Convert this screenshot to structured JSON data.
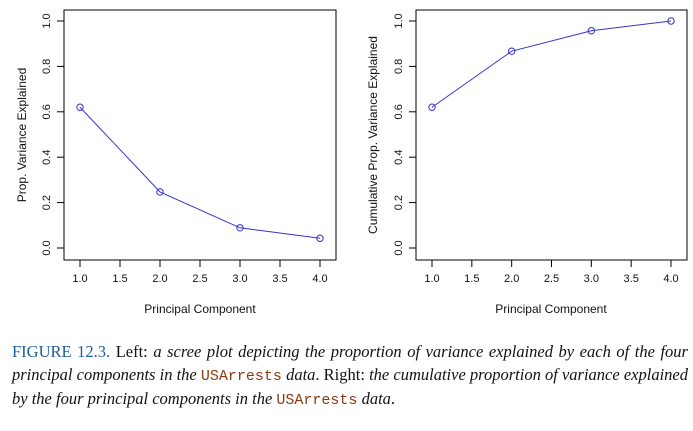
{
  "chart_data": [
    {
      "type": "line",
      "title": "",
      "xlabel": "Principal Component",
      "ylabel": "Prop. Variance Explained",
      "x": [
        1,
        2,
        3,
        4
      ],
      "series": [
        {
          "values": [
            0.62,
            0.247,
            0.089,
            0.043
          ]
        }
      ],
      "xlim": [
        1,
        4
      ],
      "ylim": [
        0,
        1
      ],
      "xticks": [
        "1.0",
        "1.5",
        "2.0",
        "2.5",
        "3.0",
        "3.5",
        "4.0"
      ],
      "yticks": [
        "0.0",
        "0.2",
        "0.4",
        "0.6",
        "0.8",
        "1.0"
      ],
      "grid": false,
      "line_color": "#3333cc"
    },
    {
      "type": "line",
      "title": "",
      "xlabel": "Principal Component",
      "ylabel": "Cumulative Prop. Variance Explained",
      "x": [
        1,
        2,
        3,
        4
      ],
      "series": [
        {
          "values": [
            0.62,
            0.867,
            0.957,
            1.0
          ]
        }
      ],
      "xlim": [
        1,
        4
      ],
      "ylim": [
        0,
        1
      ],
      "xticks": [
        "1.0",
        "1.5",
        "2.0",
        "2.5",
        "3.0",
        "3.5",
        "4.0"
      ],
      "yticks": [
        "0.0",
        "0.2",
        "0.4",
        "0.6",
        "0.8",
        "1.0"
      ],
      "grid": false,
      "line_color": "#3333cc"
    }
  ],
  "caption": {
    "label": "FIGURE 12.3.",
    "p1": " Left: ",
    "p2": "a scree plot depicting the proportion of variance explained by each of the four principal components in the ",
    "code1": "USArrests",
    "p3": " data",
    "p4": ". Right: ",
    "p5": "the cumulative proportion of variance explained by the four principal components in the ",
    "code2": "USArrests",
    "p6": " data",
    "p7": "."
  },
  "colors": {
    "label": "#1f5c99",
    "code": "#8b3a12",
    "line": "#3333cc"
  }
}
